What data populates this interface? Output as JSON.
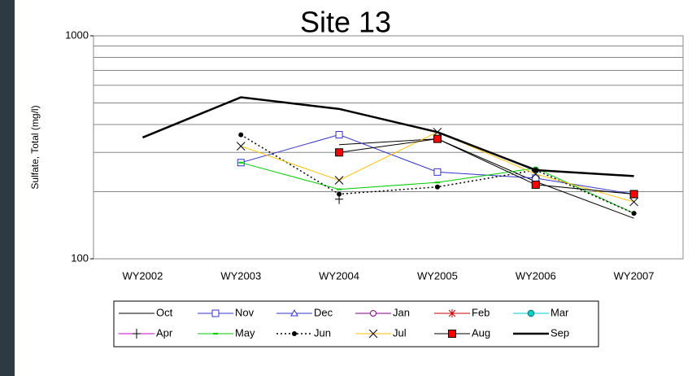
{
  "chart_data": {
    "type": "line",
    "title": "Site 13",
    "y_label": "Sulfate, Total (mg/l)",
    "categories": [
      "WY2002",
      "WY2003",
      "WY2004",
      "WY2005",
      "WY2006",
      "WY2007"
    ],
    "log_scale": true,
    "ylim": [
      100,
      1000
    ],
    "yticks": [
      100,
      1000
    ],
    "y_minor_gridlines": [
      200,
      300,
      400,
      500,
      600,
      700,
      800,
      900
    ],
    "grid": true,
    "legend": "bottom",
    "series": [
      {
        "name": "Oct",
        "color": "#000000",
        "marker": "none",
        "width": 1,
        "dash": false,
        "values": [
          null,
          null,
          325,
          345,
          222,
          152
        ]
      },
      {
        "name": "Nov",
        "color": "#3333cc",
        "marker": "square-open",
        "width": 1,
        "dash": false,
        "values": [
          null,
          270,
          360,
          245,
          230,
          195
        ]
      },
      {
        "name": "Dec",
        "color": "#3333cc",
        "marker": "triangle-open",
        "width": 1,
        "dash": false,
        "values": [
          null,
          null,
          null,
          null,
          null,
          null
        ]
      },
      {
        "name": "Jan",
        "color": "#800080",
        "marker": "circle-open",
        "width": 1,
        "dash": false,
        "values": [
          null,
          null,
          null,
          null,
          null,
          null
        ]
      },
      {
        "name": "Feb",
        "color": "#cc0000",
        "marker": "asterisk",
        "width": 1,
        "dash": false,
        "values": [
          null,
          null,
          null,
          null,
          null,
          null
        ]
      },
      {
        "name": "Mar",
        "color": "#00cccc",
        "marker": "circle-filled",
        "width": 1,
        "dash": false,
        "values": [
          null,
          null,
          null,
          null,
          250,
          null
        ]
      },
      {
        "name": "Apr",
        "color": "#cc00cc",
        "marker": "plus",
        "width": 1,
        "dash": false,
        "values": [
          null,
          null,
          185,
          null,
          null,
          null
        ]
      },
      {
        "name": "May",
        "color": "#00cc00",
        "marker": "dash",
        "width": 1,
        "dash": false,
        "values": [
          null,
          270,
          205,
          220,
          255,
          160
        ]
      },
      {
        "name": "Jun",
        "color": "#000000",
        "marker": "dot",
        "width": 1.5,
        "dash": true,
        "values": [
          null,
          360,
          195,
          210,
          250,
          160
        ]
      },
      {
        "name": "Jul",
        "color": "#ffc000",
        "marker": "x",
        "width": 1,
        "dash": false,
        "values": [
          null,
          320,
          225,
          370,
          240,
          180
        ]
      },
      {
        "name": "Aug",
        "color": "#000000",
        "marker": "square-red",
        "width": 1,
        "dash": false,
        "values": [
          null,
          null,
          300,
          345,
          215,
          195
        ]
      },
      {
        "name": "Sep",
        "color": "#000000",
        "marker": "none",
        "width": 2.5,
        "dash": false,
        "values": [
          350,
          530,
          470,
          370,
          250,
          235
        ]
      }
    ]
  }
}
